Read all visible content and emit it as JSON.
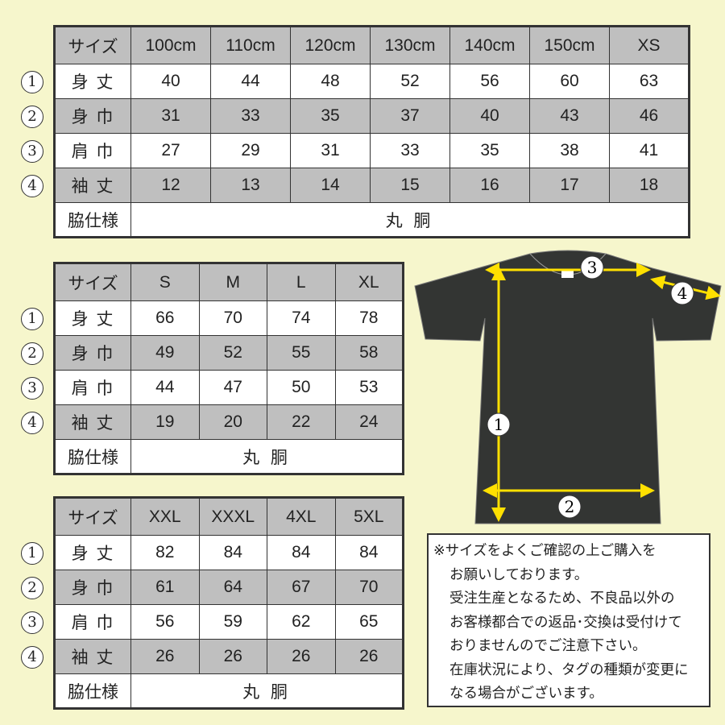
{
  "tables": [
    {
      "header": [
        "サイズ",
        "100cm",
        "110cm",
        "120cm",
        "130cm",
        "140cm",
        "150cm",
        "XS"
      ],
      "rows": [
        {
          "marker": "①",
          "label": "身 丈",
          "values": [
            "40",
            "44",
            "48",
            "52",
            "56",
            "60",
            "63"
          ]
        },
        {
          "marker": "②",
          "label": "身 巾",
          "values": [
            "31",
            "33",
            "35",
            "37",
            "40",
            "43",
            "46"
          ]
        },
        {
          "marker": "③",
          "label": "肩 巾",
          "values": [
            "27",
            "29",
            "31",
            "33",
            "35",
            "38",
            "41"
          ]
        },
        {
          "marker": "④",
          "label": "袖 丈",
          "values": [
            "12",
            "13",
            "14",
            "15",
            "16",
            "17",
            "18"
          ]
        }
      ],
      "side_label": "脇仕様",
      "side_value": "丸 胴"
    },
    {
      "header": [
        "サイズ",
        "S",
        "M",
        "L",
        "XL"
      ],
      "rows": [
        {
          "marker": "①",
          "label": "身 丈",
          "values": [
            "66",
            "70",
            "74",
            "78"
          ]
        },
        {
          "marker": "②",
          "label": "身 巾",
          "values": [
            "49",
            "52",
            "55",
            "58"
          ]
        },
        {
          "marker": "③",
          "label": "肩 巾",
          "values": [
            "44",
            "47",
            "50",
            "53"
          ]
        },
        {
          "marker": "④",
          "label": "袖 丈",
          "values": [
            "19",
            "20",
            "22",
            "24"
          ]
        }
      ],
      "side_label": "脇仕様",
      "side_value": "丸 胴"
    },
    {
      "header": [
        "サイズ",
        "XXL",
        "XXXL",
        "4XL",
        "5XL"
      ],
      "rows": [
        {
          "marker": "①",
          "label": "身 丈",
          "values": [
            "82",
            "84",
            "84",
            "84"
          ]
        },
        {
          "marker": "②",
          "label": "身 巾",
          "values": [
            "61",
            "64",
            "67",
            "70"
          ]
        },
        {
          "marker": "③",
          "label": "肩 巾",
          "values": [
            "56",
            "59",
            "62",
            "65"
          ]
        },
        {
          "marker": "④",
          "label": "袖 丈",
          "values": [
            "26",
            "26",
            "26",
            "26"
          ]
        }
      ],
      "side_label": "脇仕様",
      "side_value": "丸 胴"
    }
  ],
  "diagram": {
    "labels": [
      "1",
      "2",
      "3",
      "4"
    ],
    "shirt_color": "#333533",
    "arrow_color": "#ffe000"
  },
  "note": {
    "lines": [
      "※サイズをよくご確認の上ご購入を",
      "お願いしております。",
      "受注生産となるため、不良品以外の",
      "お客様都合での返品･交換は受付けて",
      "おりませんのでご注意下さい。",
      "在庫状況により、タグの種類が変更に",
      "なる場合がございます。"
    ]
  }
}
